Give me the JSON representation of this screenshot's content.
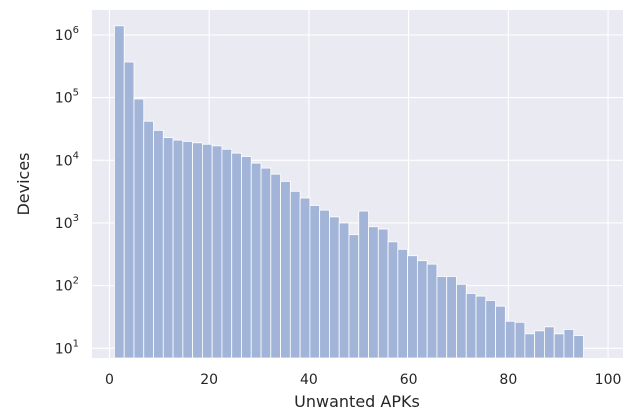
{
  "chart_data": {
    "type": "bar",
    "xlabel": "Unwanted APKs",
    "ylabel": "Devices",
    "yscale": "log",
    "grid": true,
    "bar_color": "#a2b5d9",
    "plot_background": "#eaeaf2",
    "xlim": [
      -3.5,
      103
    ],
    "ylim": [
      7,
      2500000
    ],
    "x_ticks": [
      0,
      20,
      40,
      60,
      80,
      100
    ],
    "x_tick_labels": [
      "0",
      "20",
      "40",
      "60",
      "80",
      "100"
    ],
    "y_ticks": [
      10,
      100,
      1000,
      10000,
      100000,
      1000000
    ],
    "y_tick_bases": [
      "10",
      "10",
      "10",
      "10",
      "10",
      "10"
    ],
    "y_tick_exponents": [
      "1",
      "2",
      "3",
      "4",
      "5",
      "6"
    ],
    "bin_start": 1,
    "bin_width": 1.96,
    "values": [
      1400000,
      370000,
      95000,
      42000,
      30000,
      23000,
      21000,
      20000,
      19000,
      18000,
      17000,
      15000,
      13000,
      11500,
      9000,
      7500,
      6000,
      4600,
      3200,
      2500,
      1900,
      1600,
      1250,
      1000,
      650,
      1550,
      870,
      800,
      500,
      380,
      300,
      250,
      220,
      140,
      140,
      105,
      75,
      68,
      58,
      47,
      27,
      26,
      17,
      19,
      22,
      17,
      20,
      16
    ]
  }
}
